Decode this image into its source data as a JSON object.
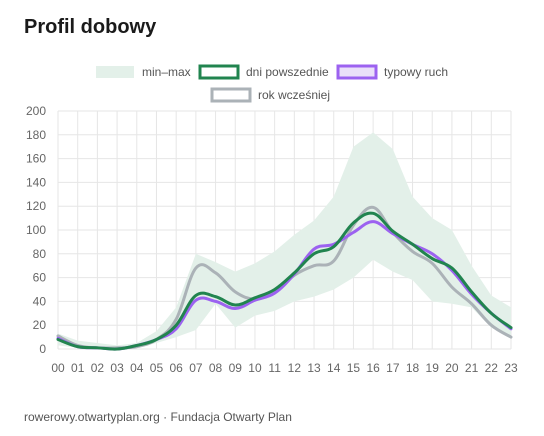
{
  "chart_data": {
    "type": "line",
    "title": "Profil dobowy",
    "xlabel": "",
    "ylabel": "",
    "ylim": [
      0,
      200
    ],
    "yticks": [
      0,
      20,
      40,
      60,
      80,
      100,
      120,
      140,
      160,
      180,
      200
    ],
    "x": [
      "00",
      "01",
      "02",
      "03",
      "04",
      "05",
      "06",
      "07",
      "08",
      "09",
      "10",
      "11",
      "12",
      "13",
      "14",
      "15",
      "16",
      "17",
      "18",
      "19",
      "20",
      "21",
      "22",
      "23"
    ],
    "band": {
      "name": "min–max",
      "color": "#e3f0e9",
      "min": [
        3,
        1,
        0,
        0,
        1,
        5,
        10,
        16,
        38,
        18,
        28,
        32,
        40,
        44,
        50,
        60,
        75,
        65,
        58,
        40,
        38,
        35,
        18,
        10
      ],
      "max": [
        13,
        7,
        5,
        3,
        5,
        15,
        35,
        80,
        73,
        65,
        72,
        82,
        96,
        108,
        128,
        170,
        182,
        168,
        128,
        110,
        100,
        70,
        45,
        35
      ]
    },
    "series": [
      {
        "name": "rok wcześniej",
        "color": "#abb2b7",
        "width": 3,
        "values": [
          11,
          3,
          1,
          1,
          2,
          8,
          25,
          68,
          64,
          48,
          42,
          48,
          62,
          70,
          74,
          104,
          119,
          98,
          82,
          72,
          52,
          38,
          20,
          10
        ]
      },
      {
        "name": "typowy ruch",
        "color": "#9c62f0",
        "width": 3,
        "values": [
          9,
          2,
          1,
          0,
          3,
          8,
          17,
          41,
          40,
          34,
          41,
          47,
          63,
          84,
          88,
          98,
          107,
          97,
          88,
          80,
          66,
          46,
          30,
          17
        ]
      },
      {
        "name": "dni powszednie",
        "color": "#21844f",
        "width": 3,
        "values": [
          8,
          2,
          1,
          0,
          3,
          8,
          20,
          45,
          44,
          37,
          43,
          50,
          64,
          80,
          86,
          106,
          114,
          99,
          88,
          76,
          68,
          48,
          30,
          18
        ]
      }
    ],
    "legend": {
      "placement": "top",
      "entries": [
        {
          "label": "min–max",
          "fill": "#e3f0e9",
          "stroke": "none"
        },
        {
          "label": "dni powszednie",
          "fill": "#ffffff",
          "stroke": "#21844f"
        },
        {
          "label": "typowy ruch",
          "fill": "#eadff9",
          "stroke": "#9c62f0"
        },
        {
          "label": "rok wcześniej",
          "fill": "#ffffff",
          "stroke": "#abb2b7"
        }
      ]
    },
    "grid": true
  },
  "footer": "rowerowy.otwartyplan.org · Fundacja Otwarty Plan"
}
